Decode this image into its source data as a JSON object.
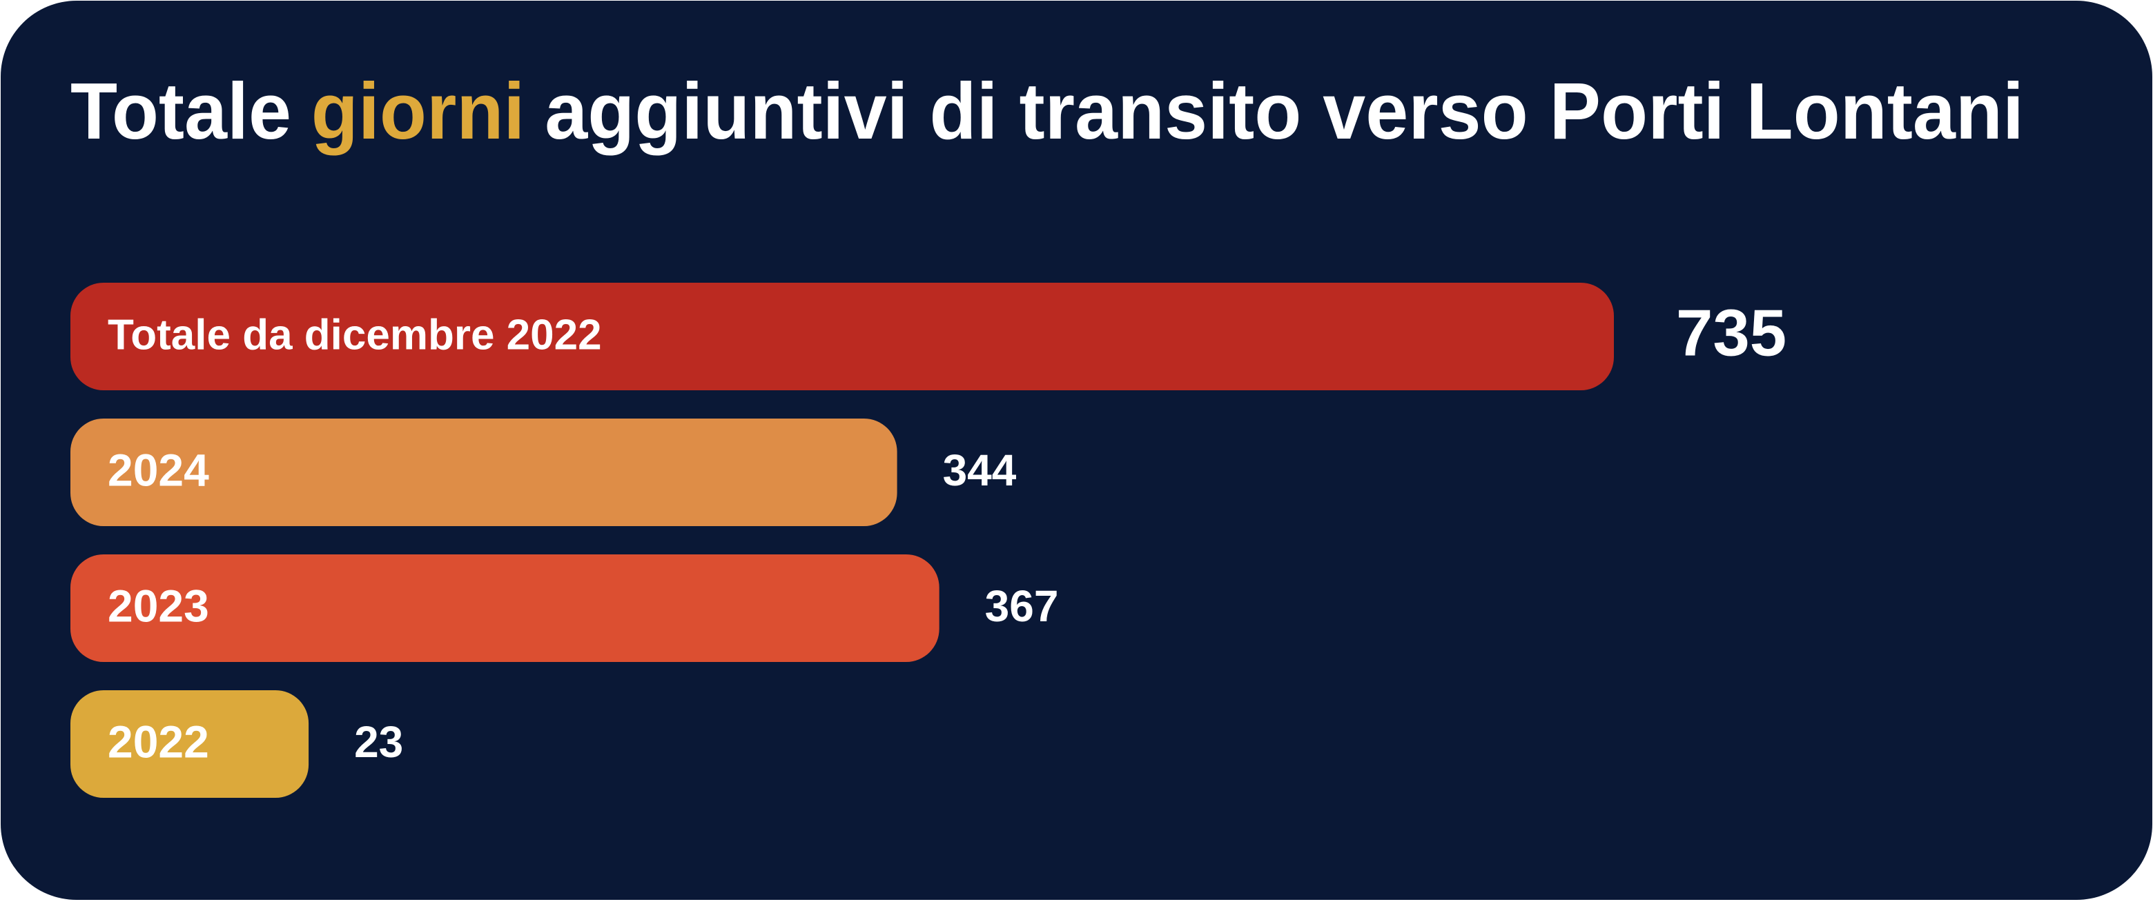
{
  "chart_data": {
    "type": "bar",
    "orientation": "horizontal",
    "title_segments": [
      {
        "text": "Totale",
        "color": "#ffffff"
      },
      {
        "text": "giorni",
        "color": "#dea93b"
      },
      {
        "text": "aggiuntivi di transito verso Porti Lontani",
        "color": "#ffffff"
      }
    ],
    "categories": [
      "Totale da dicembre 2022",
      "2024",
      "2023",
      "2022"
    ],
    "values": [
      735,
      344,
      367,
      23
    ],
    "colors": [
      "#bb2a21",
      "#de8d47",
      "#dc4f31",
      "#dca93b"
    ],
    "background": "#0a1836"
  }
}
